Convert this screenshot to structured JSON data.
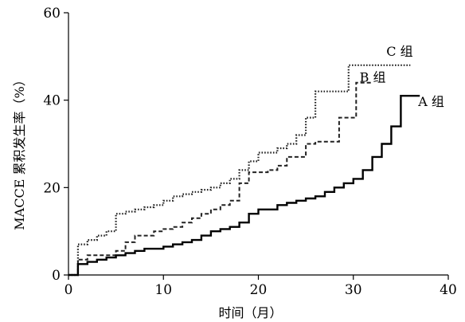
{
  "chart_data": {
    "type": "line",
    "title": "",
    "xlabel": "时间（月）",
    "ylabel": "MACCE 累积发生率（%）",
    "xlim": [
      0,
      40
    ],
    "ylim": [
      0,
      60
    ],
    "xticks": [
      0,
      10,
      20,
      30,
      40
    ],
    "yticks": [
      0,
      20,
      40,
      60
    ],
    "grid": false,
    "legend": "none",
    "series": [
      {
        "name": "C 组",
        "style": "dotted",
        "color": "#222222",
        "points": [
          [
            0,
            0
          ],
          [
            1,
            0
          ],
          [
            1,
            7
          ],
          [
            2,
            8
          ],
          [
            3,
            9
          ],
          [
            4,
            10
          ],
          [
            5,
            14
          ],
          [
            6,
            14.5
          ],
          [
            7,
            15
          ],
          [
            8,
            15.5
          ],
          [
            9,
            16
          ],
          [
            10,
            17
          ],
          [
            11,
            18
          ],
          [
            12,
            18.5
          ],
          [
            13,
            19
          ],
          [
            14,
            19.5
          ],
          [
            15,
            20
          ],
          [
            16,
            21
          ],
          [
            17,
            22
          ],
          [
            18,
            24
          ],
          [
            19,
            26
          ],
          [
            20,
            28
          ],
          [
            21,
            28
          ],
          [
            22,
            29
          ],
          [
            23,
            30
          ],
          [
            24,
            32
          ],
          [
            25,
            36
          ],
          [
            26,
            42
          ],
          [
            28,
            42
          ],
          [
            29.5,
            48
          ],
          [
            36,
            48
          ]
        ]
      },
      {
        "name": "B 组",
        "style": "dashed",
        "color": "#222222",
        "points": [
          [
            0,
            0
          ],
          [
            1,
            0
          ],
          [
            1,
            3.5
          ],
          [
            2,
            4.5
          ],
          [
            4,
            4.5
          ],
          [
            5,
            5.5
          ],
          [
            6,
            7.5
          ],
          [
            7,
            9
          ],
          [
            8,
            9
          ],
          [
            9,
            10
          ],
          [
            10,
            10.5
          ],
          [
            11,
            11
          ],
          [
            12,
            12
          ],
          [
            13,
            13
          ],
          [
            14,
            14
          ],
          [
            15,
            15
          ],
          [
            16,
            16
          ],
          [
            17,
            17
          ],
          [
            18,
            21
          ],
          [
            19,
            23.5
          ],
          [
            20,
            23.5
          ],
          [
            21,
            24
          ],
          [
            22,
            25
          ],
          [
            23,
            27
          ],
          [
            24,
            27
          ],
          [
            25,
            30
          ],
          [
            26,
            30.5
          ],
          [
            28,
            30.5
          ],
          [
            28.5,
            36
          ],
          [
            30,
            36
          ],
          [
            30.3,
            44
          ],
          [
            32,
            44
          ],
          [
            32,
            44
          ]
        ]
      },
      {
        "name": "A 组",
        "style": "solid",
        "color": "#000000",
        "points": [
          [
            0,
            0
          ],
          [
            1,
            0
          ],
          [
            1,
            2.5
          ],
          [
            2,
            3
          ],
          [
            3,
            3.5
          ],
          [
            4,
            4
          ],
          [
            5,
            4.5
          ],
          [
            6,
            5
          ],
          [
            7,
            5.5
          ],
          [
            8,
            6
          ],
          [
            9,
            6
          ],
          [
            10,
            6.5
          ],
          [
            11,
            7
          ],
          [
            12,
            7.5
          ],
          [
            13,
            8
          ],
          [
            14,
            9
          ],
          [
            15,
            10
          ],
          [
            16,
            10.5
          ],
          [
            17,
            11
          ],
          [
            18,
            12
          ],
          [
            19,
            14
          ],
          [
            20,
            15
          ],
          [
            21,
            15
          ],
          [
            22,
            16
          ],
          [
            23,
            16.5
          ],
          [
            24,
            17
          ],
          [
            25,
            17.5
          ],
          [
            26,
            18
          ],
          [
            27,
            19
          ],
          [
            28,
            20
          ],
          [
            29,
            21
          ],
          [
            30,
            22
          ],
          [
            31,
            24
          ],
          [
            32,
            27
          ],
          [
            33,
            30
          ],
          [
            34,
            34
          ],
          [
            35,
            41
          ],
          [
            37,
            41
          ]
        ]
      }
    ]
  }
}
